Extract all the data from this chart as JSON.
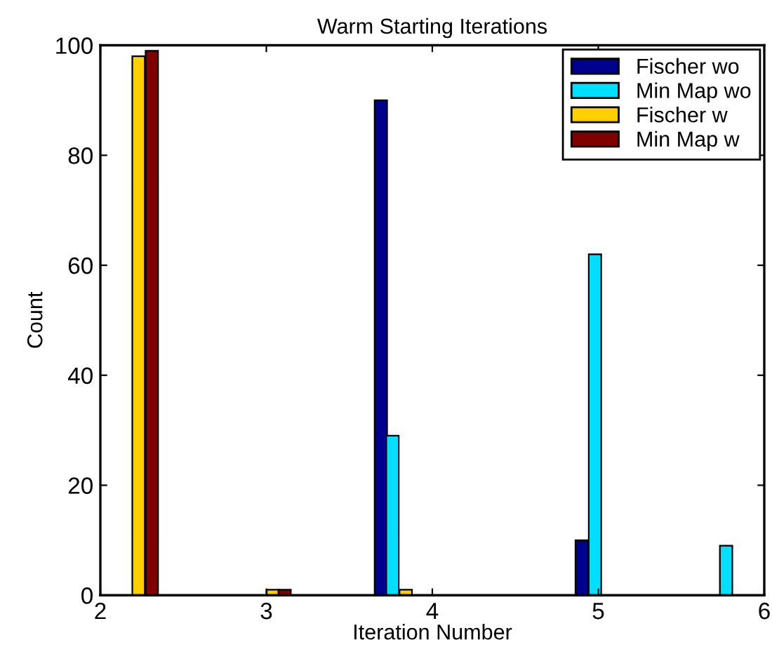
{
  "chart_data": {
    "type": "bar",
    "title": "Warm Starting Iterations",
    "xlabel": "Iteration Number",
    "ylabel": "Count",
    "xlim": [
      2,
      6
    ],
    "xticks": [
      2,
      3,
      4,
      5,
      6
    ],
    "ylim": [
      0,
      100
    ],
    "yticks": [
      0,
      20,
      40,
      60,
      80,
      100
    ],
    "grid": false,
    "legend": "top right",
    "series": [
      {
        "name": "Fischer wo",
        "color": "#00008f",
        "x": [
          3.69,
          4.9
        ],
        "values": [
          90,
          10
        ]
      },
      {
        "name": "Min Map wo",
        "color": "#00dfff",
        "x": [
          3.76,
          4.98,
          5.77
        ],
        "values": [
          29,
          62,
          9
        ]
      },
      {
        "name": "Fischer w",
        "color": "#ffcf00",
        "x": [
          2.23,
          3.04,
          3.84
        ],
        "values": [
          98,
          1,
          1
        ]
      },
      {
        "name": "Min Map w",
        "color": "#800000",
        "x": [
          2.31,
          3.11
        ],
        "values": [
          99,
          1
        ]
      }
    ]
  }
}
